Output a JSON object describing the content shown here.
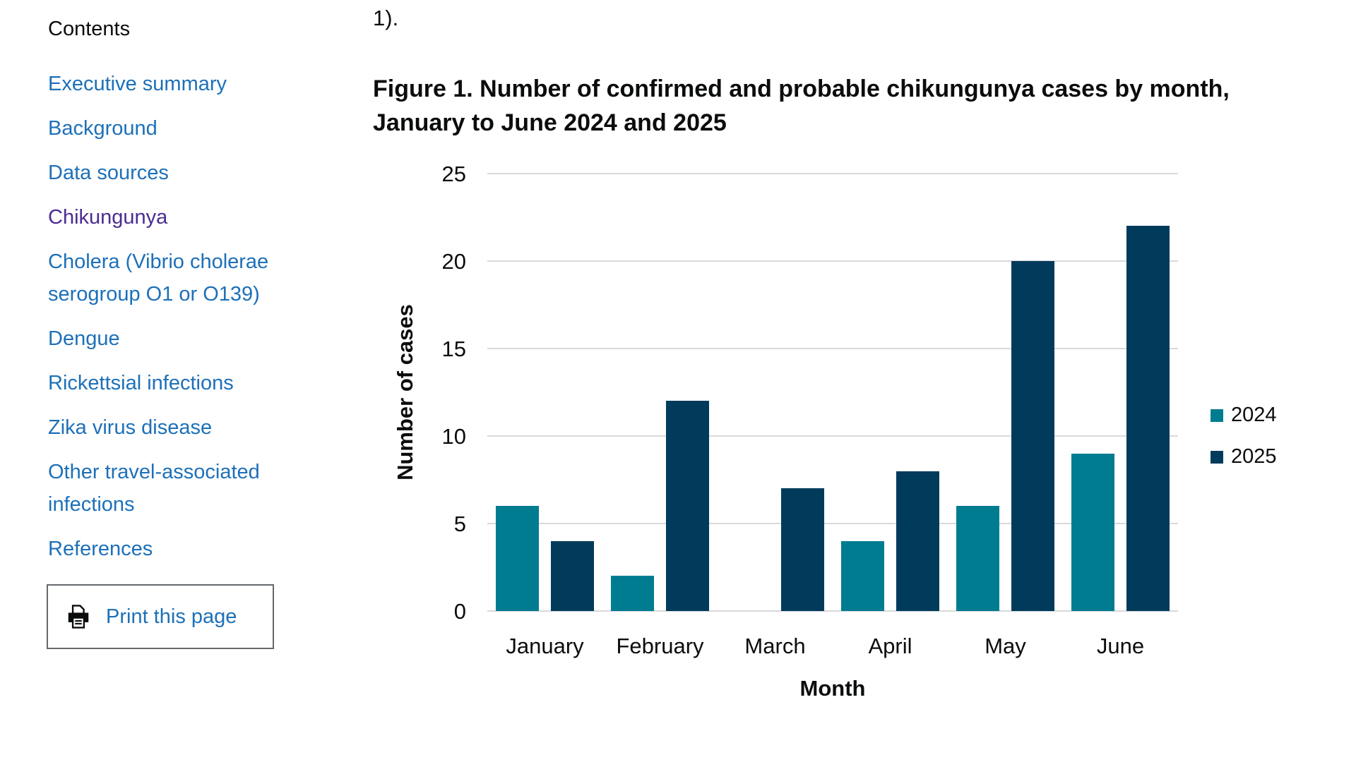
{
  "page": {
    "fragment_text": "1)."
  },
  "sidebar": {
    "heading": "Contents",
    "items": [
      {
        "label": "Executive summary"
      },
      {
        "label": "Background"
      },
      {
        "label": "Data sources"
      },
      {
        "label": "Chikungunya",
        "current": true
      },
      {
        "label": "Cholera (Vibrio cholerae serogroup O1 or O139)"
      },
      {
        "label": "Dengue"
      },
      {
        "label": "Rickettsial infections"
      },
      {
        "label": "Zika virus disease"
      },
      {
        "label": "Other travel-associated infections"
      },
      {
        "label": "References"
      }
    ],
    "print_button": {
      "label": "Print this page",
      "icon": "printer-icon"
    }
  },
  "figure": {
    "title": "Figure 1. Number of confirmed and probable chikungunya cases by month, January to June 2024 and 2025"
  },
  "chart_data": {
    "type": "bar",
    "title": "Figure 1. Number of confirmed and probable chikungunya cases by month, January to June 2024 and 2025",
    "categories": [
      "January",
      "February",
      "March",
      "April",
      "May",
      "June"
    ],
    "series": [
      {
        "name": "2024",
        "color": "#007C91",
        "values": [
          6,
          2,
          0,
          4,
          6,
          9
        ]
      },
      {
        "name": "2025",
        "color": "#003B5C",
        "values": [
          4,
          12,
          7,
          8,
          20,
          22
        ]
      }
    ],
    "xlabel": "Month",
    "ylabel": "Number of cases",
    "ylim": [
      0,
      25
    ],
    "yticks": [
      0,
      5,
      10,
      15,
      20,
      25
    ],
    "grid": true,
    "legend_position": "right"
  },
  "colors": {
    "link": "#1d70b8",
    "link_current": "#4c2c92",
    "text": "#0b0c0c",
    "gridline": "#d9d9d9",
    "series_2024": "#007C91",
    "series_2025": "#003B5C"
  }
}
